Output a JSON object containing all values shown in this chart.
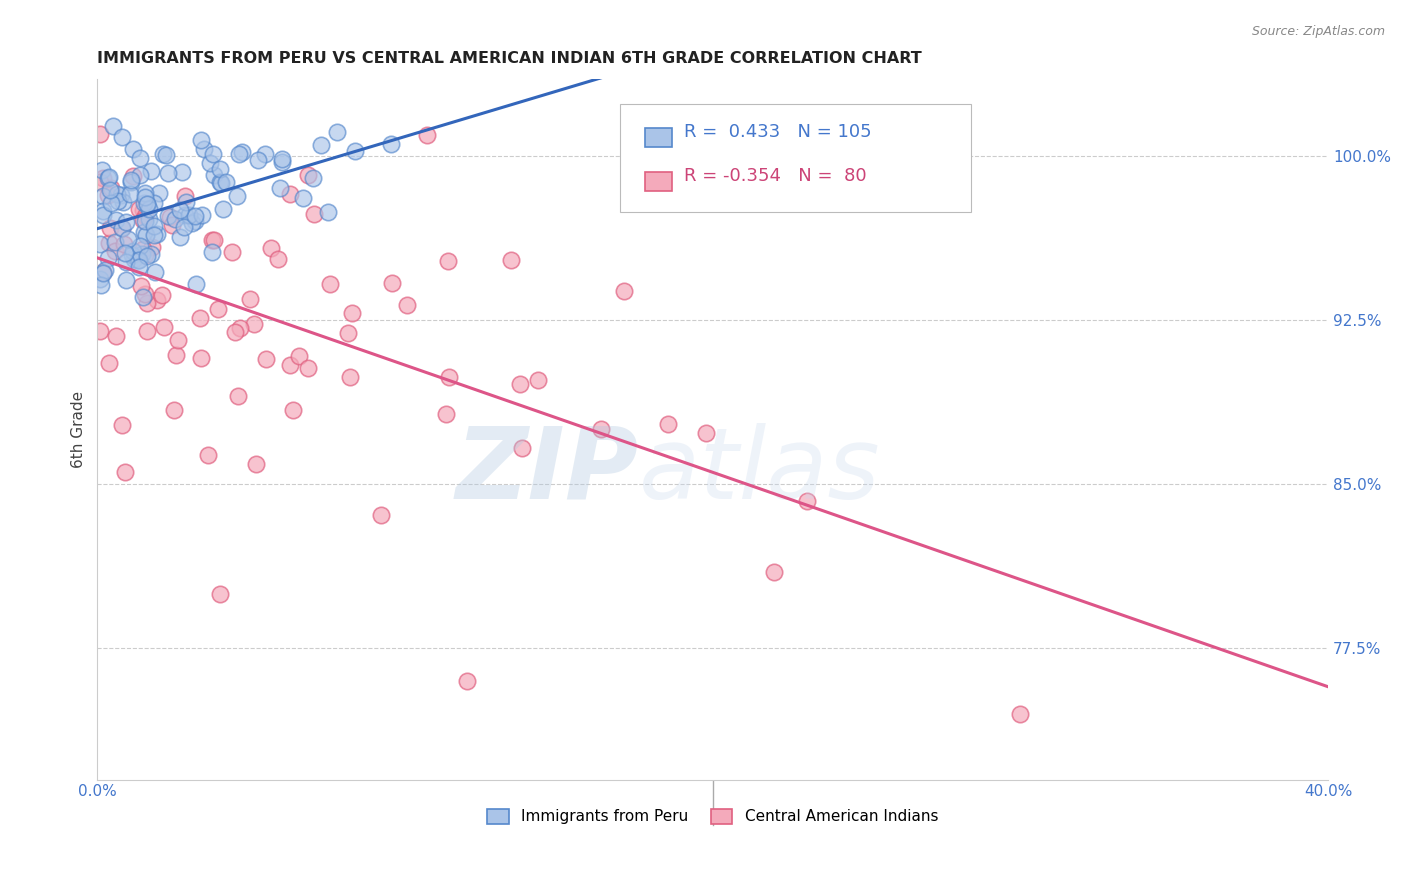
{
  "title": "IMMIGRANTS FROM PERU VS CENTRAL AMERICAN INDIAN 6TH GRADE CORRELATION CHART",
  "source": "Source: ZipAtlas.com",
  "ylabel": "6th Grade",
  "ytick_labels": [
    "100.0%",
    "92.5%",
    "85.0%",
    "77.5%"
  ],
  "ytick_values": [
    1.0,
    0.925,
    0.85,
    0.775
  ],
  "xlim": [
    0.0,
    0.4
  ],
  "ylim": [
    0.715,
    1.035
  ],
  "legend_entries": [
    {
      "label": "Immigrants from Peru",
      "fill": "#aac4e8",
      "edge": "#5588cc"
    },
    {
      "label": "Central American Indians",
      "fill": "#f4aabb",
      "edge": "#e06080"
    }
  ],
  "corr_peru": {
    "R": 0.433,
    "N": 105,
    "color": "#4477cc",
    "line_color": "#3366bb"
  },
  "corr_ca": {
    "R": -0.354,
    "N": 80,
    "color": "#cc4477",
    "line_color": "#dd5588"
  },
  "bg_color": "#ffffff",
  "grid_color": "#cccccc",
  "watermark_text": "ZIPatlas",
  "watermark_color": "#c8ddf0",
  "title_fontsize": 11.5,
  "tick_fontsize": 11,
  "label_fontsize": 11,
  "axis_label_color": "#444444",
  "ytick_color": "#4477cc",
  "source_color": "#888888",
  "legend_box_color": "#dddddd"
}
